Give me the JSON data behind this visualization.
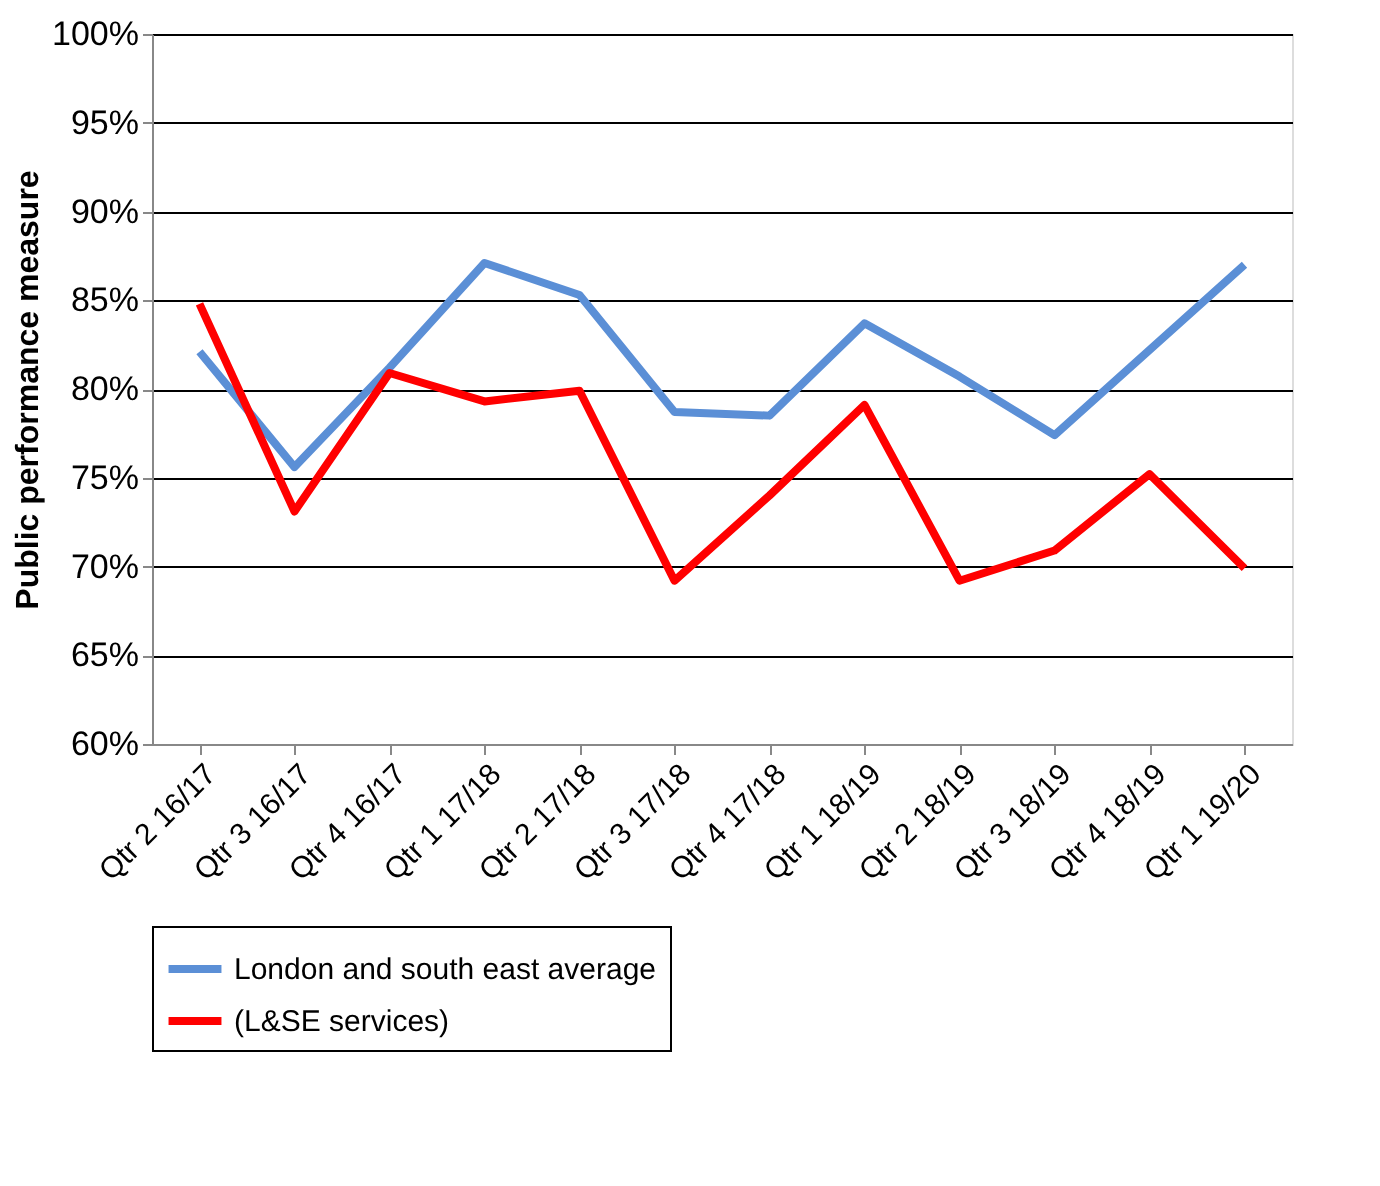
{
  "chart_data": {
    "type": "line",
    "ylabel": "Public performance measure",
    "categories": [
      "Qtr 2 16/17",
      "Qtr 3 16/17",
      "Qtr 4 16/17",
      "Qtr 1 17/18",
      "Qtr 2 17/18",
      "Qtr 3 17/18",
      "Qtr 4 17/18",
      "Qtr 1 18/19",
      "Qtr 2 18/19",
      "Qtr 3 18/19",
      "Qtr 4 18/19",
      "Qtr 1 19/20"
    ],
    "series": [
      {
        "name": "London and south east average",
        "color": "#5b8fd6",
        "values": [
          82.1,
          75.6,
          81.2,
          87.1,
          85.3,
          78.7,
          78.5,
          83.7,
          80.7,
          77.4,
          82.2,
          87.0
        ]
      },
      {
        "name": "(L&SE services)",
        "color": "#ff0000",
        "values": [
          84.8,
          73.1,
          80.9,
          79.3,
          79.9,
          69.2,
          74.0,
          79.1,
          69.2,
          70.9,
          75.2,
          69.9
        ]
      }
    ],
    "ylim": [
      60,
      100
    ],
    "yticks": [
      {
        "value": 60,
        "label": "60%"
      },
      {
        "value": 65,
        "label": "65%"
      },
      {
        "value": 70,
        "label": "70%"
      },
      {
        "value": 75,
        "label": "75%"
      },
      {
        "value": 80,
        "label": "80%"
      },
      {
        "value": 85,
        "label": "85%"
      },
      {
        "value": 90,
        "label": "90%"
      },
      {
        "value": 95,
        "label": "95%"
      },
      {
        "value": 100,
        "label": "100%"
      }
    ],
    "grid": "y",
    "legend": "bottom",
    "marker": "none",
    "line_style": "solid"
  }
}
